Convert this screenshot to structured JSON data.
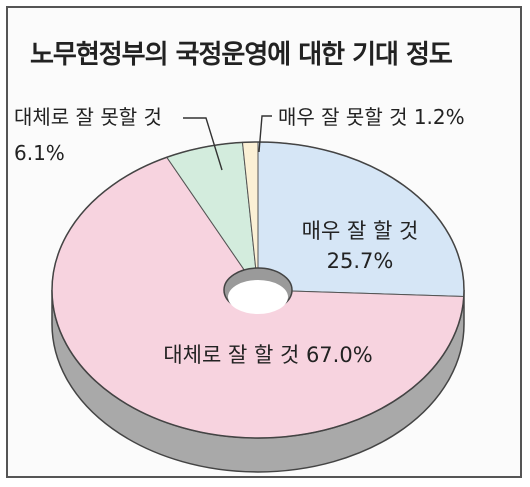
{
  "chart_data": {
    "type": "pie",
    "title": "노무현정부의 국정운영에 대한 기대 정도",
    "slices": [
      {
        "label": "매우 잘 할 것",
        "value": 25.7,
        "value_label": "25.7%",
        "color": "#d6e6f6"
      },
      {
        "label": "대체로 잘 할 것",
        "value": 67.0,
        "value_label": "67.0%",
        "color": "#f7d3df"
      },
      {
        "label": "대체로 잘 못할 것",
        "value": 6.1,
        "value_label": "6.1%",
        "color": "#d3ecdd"
      },
      {
        "label": "매우 잘 못할 것",
        "value": 1.2,
        "value_label": "1.2%",
        "color": "#fbf0d5"
      }
    ],
    "donut": true,
    "three_d": true
  }
}
